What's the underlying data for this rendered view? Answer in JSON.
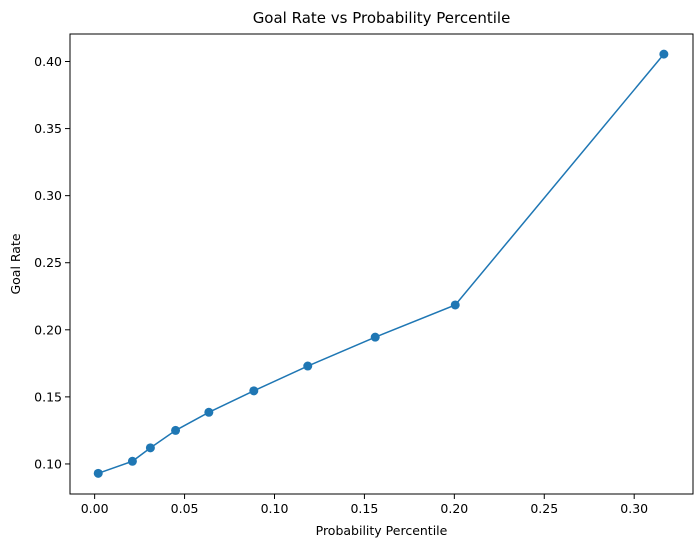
{
  "chart_data": {
    "type": "line",
    "title": "Goal Rate vs Probability Percentile",
    "xlabel": "Probability Percentile",
    "ylabel": "Goal Rate",
    "xlim": [
      -0.0137,
      0.3327
    ],
    "ylim": [
      0.0776,
      0.4205
    ],
    "xticks": [
      "0.00",
      "0.05",
      "0.10",
      "0.15",
      "0.20",
      "0.25",
      "0.30"
    ],
    "yticks": [
      "0.10",
      "0.15",
      "0.20",
      "0.25",
      "0.30",
      "0.35",
      "0.40"
    ],
    "grid": false,
    "series": [
      {
        "color": "#1f77b4",
        "marker": "circle",
        "x": [
          0.002,
          0.021,
          0.031,
          0.045,
          0.0635,
          0.0885,
          0.1185,
          0.156,
          0.2005,
          0.3165
        ],
        "y": [
          0.093,
          0.102,
          0.112,
          0.125,
          0.1385,
          0.1545,
          0.173,
          0.1945,
          0.2185,
          0.4055
        ]
      }
    ]
  }
}
